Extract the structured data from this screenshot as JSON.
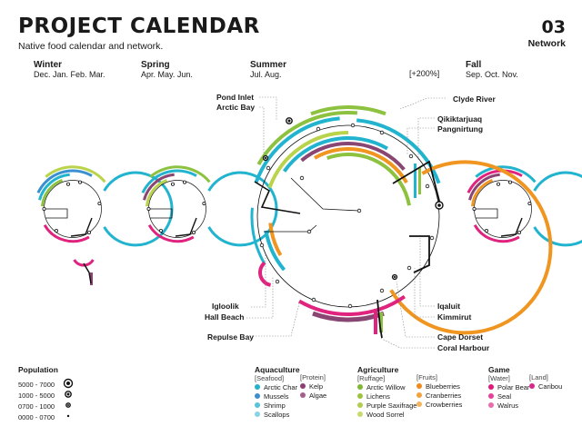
{
  "header": {
    "title": "PROJECT CALENDAR",
    "subtitle": "Native food calendar and network.",
    "number": "03",
    "number_label": "Network"
  },
  "seasons": [
    {
      "name": "Winter",
      "months": "Dec. Jan. Feb. Mar."
    },
    {
      "name": "Spring",
      "months": "Apr. May. Jun."
    },
    {
      "name": "Summer",
      "months": "Jul. Aug."
    },
    {
      "name": "Fall",
      "months": "Sep. Oct. Nov."
    }
  ],
  "summer_note": "[+200%]",
  "places_left": [
    "Pond Inlet",
    "Arctic Bay",
    "Igloolik",
    "Hall Beach",
    "Repulse Bay"
  ],
  "places_right": [
    "Clyde River",
    "Qikiktarjuaq",
    "Pangnirtung",
    "Iqaluit",
    "Kimmirut",
    "Cape Dorset",
    "Coral Harbour"
  ],
  "population": {
    "title": "Population",
    "ranges": [
      "5000 - 7000",
      "1000 - 5000",
      "0700 - 1000",
      "0000 - 0700"
    ]
  },
  "legend": {
    "aquaculture": {
      "title": "Aquaculture",
      "seafood_label": "[Seafood]",
      "protein_label": "[Protein]",
      "seafood": [
        {
          "name": "Arctic Char",
          "color": "#27b1c9"
        },
        {
          "name": "Mussels",
          "color": "#3c8fcf"
        },
        {
          "name": "Shrimp",
          "color": "#56c3d8"
        },
        {
          "name": "Scallops",
          "color": "#8ad3e3"
        }
      ],
      "protein": [
        {
          "name": "Kelp",
          "color": "#8c3f72"
        },
        {
          "name": "Algae",
          "color": "#a2608a"
        }
      ]
    },
    "agriculture": {
      "title": "Agriculture",
      "ruffage_label": "[Ruffage]",
      "fruits_label": "[Fruits]",
      "ruffage": [
        {
          "name": "Arctic Willow",
          "color": "#7fb832"
        },
        {
          "name": "Lichens",
          "color": "#9ac43c"
        },
        {
          "name": "Purple Saxifrage",
          "color": "#b0cd4e"
        },
        {
          "name": "Wood Sorrel",
          "color": "#c8da6c"
        }
      ],
      "fruits": [
        {
          "name": "Blueberries",
          "color": "#f08a1d"
        },
        {
          "name": "Cranberries",
          "color": "#f2a23d"
        },
        {
          "name": "Crowberries",
          "color": "#f4b45c"
        }
      ]
    },
    "game": {
      "title": "Game",
      "water_label": "[Water]",
      "land_label": "[Land]",
      "water": [
        {
          "name": "Polar Bear",
          "color": "#e0187c"
        },
        {
          "name": "Seal",
          "color": "#e5409a"
        },
        {
          "name": "Walrus",
          "color": "#ea6aae"
        }
      ],
      "land": [
        {
          "name": "Caribou",
          "color": "#d62a8a"
        }
      ]
    }
  },
  "colors": {
    "cyan": "#22b4cf",
    "blue": "#3a8fd0",
    "green": "#8cc23f",
    "lime": "#b9d34a",
    "orange": "#f0951f",
    "magenta": "#e0237f",
    "purple": "#8a4673",
    "black": "#111111"
  }
}
